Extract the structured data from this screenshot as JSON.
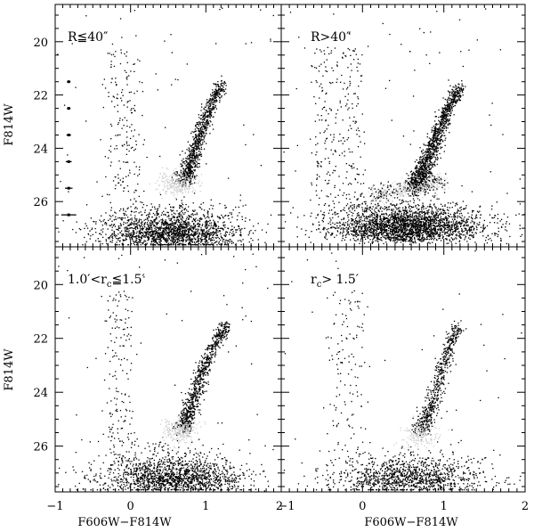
{
  "chart_data": [
    {
      "type": "scatter",
      "panel": "top-left",
      "label": "R≦40″",
      "xlabel": "",
      "ylabel": "F814W",
      "xlim": [
        -1,
        2
      ],
      "ylim": [
        27.7,
        18.6
      ],
      "y_inverted": true,
      "xticks": [],
      "yticks": [
        "20",
        "22",
        "24",
        "26"
      ],
      "error_bars": [
        {
          "x": -0.82,
          "y": 21.5,
          "xerr": 0.02
        },
        {
          "x": -0.82,
          "y": 22.5,
          "xerr": 0.02
        },
        {
          "x": -0.82,
          "y": 23.5,
          "xerr": 0.03
        },
        {
          "x": -0.82,
          "y": 24.5,
          "xerr": 0.04
        },
        {
          "x": -0.82,
          "y": 25.5,
          "xerr": 0.05
        },
        {
          "x": -0.82,
          "y": 26.5,
          "xerr": 0.1
        }
      ],
      "features": {
        "red_giant_branch": [
          [
            0.7,
            25.2
          ],
          [
            0.8,
            24.5
          ],
          [
            0.9,
            23.6
          ],
          [
            0.98,
            22.9
          ],
          [
            1.08,
            22.2
          ],
          [
            1.22,
            21.6
          ]
        ],
        "turnoff_clump": {
          "x": 0.62,
          "y": 25.3
        },
        "field_band_x": [
          -0.3,
          0.1
        ],
        "main_sequence_y": 27.2,
        "density": "high"
      }
    },
    {
      "type": "scatter",
      "panel": "top-right",
      "label": "R>40″",
      "xlabel": "",
      "ylabel": "",
      "xlim": [
        -1,
        2
      ],
      "ylim": [
        27.7,
        18.6
      ],
      "y_inverted": true,
      "xticks": [],
      "yticks": [],
      "features": {
        "red_giant_branch": [
          [
            0.65,
            25.4
          ],
          [
            0.75,
            24.8
          ],
          [
            0.85,
            24.0
          ],
          [
            0.95,
            23.2
          ],
          [
            1.05,
            22.4
          ],
          [
            1.2,
            21.7
          ]
        ],
        "horizontal_band": {
          "x_from": 0.1,
          "x_to": 1.0,
          "y": 25.5
        },
        "field_band_x": [
          -0.6,
          0.0
        ],
        "main_sequence_y": 27.0,
        "density": "very-high"
      }
    },
    {
      "type": "scatter",
      "panel": "bottom-left",
      "label": "1.0′<r_c≦1.5′",
      "label_main": "1.0′<r",
      "label_sub": "c",
      "label_tail": "≦1.5′",
      "xlabel": "F606W−F814W",
      "ylabel": "F814W",
      "xlim": [
        -1,
        2
      ],
      "ylim": [
        27.7,
        18.6
      ],
      "y_inverted": true,
      "xticks": [
        "−1",
        "0",
        "1",
        "2"
      ],
      "yticks": [
        "20",
        "22",
        "24",
        "26"
      ],
      "features": {
        "red_giant_branch": [
          [
            0.7,
            25.3
          ],
          [
            0.8,
            24.5
          ],
          [
            0.9,
            23.6
          ],
          [
            1.0,
            22.8
          ],
          [
            1.15,
            22.0
          ],
          [
            1.28,
            21.5
          ]
        ],
        "turnoff_clump": {
          "x": 0.65,
          "y": 25.4
        },
        "field_band_x": [
          -0.3,
          0.0
        ],
        "main_sequence_y": 27.2,
        "density": "medium"
      }
    },
    {
      "type": "scatter",
      "panel": "bottom-right",
      "label": "r_c> 1.5′",
      "label_main": "r",
      "label_sub": "c",
      "label_tail": "> 1.5′",
      "xlabel": "F606W−F814W",
      "ylabel": "",
      "xlim": [
        -1,
        2
      ],
      "ylim": [
        27.7,
        18.6
      ],
      "y_inverted": true,
      "xticks": [
        "−1",
        "0",
        "1",
        "2"
      ],
      "yticks": [],
      "features": {
        "red_giant_branch": [
          [
            0.72,
            25.4
          ],
          [
            0.82,
            24.6
          ],
          [
            0.92,
            23.7
          ],
          [
            1.0,
            22.9
          ],
          [
            1.08,
            22.1
          ],
          [
            1.18,
            21.5
          ]
        ],
        "turnoff_clump": {
          "x": 0.7,
          "y": 25.6
        },
        "field_band_x": [
          -0.4,
          0.0
        ],
        "main_sequence_y": 27.2,
        "density": "low"
      }
    }
  ]
}
